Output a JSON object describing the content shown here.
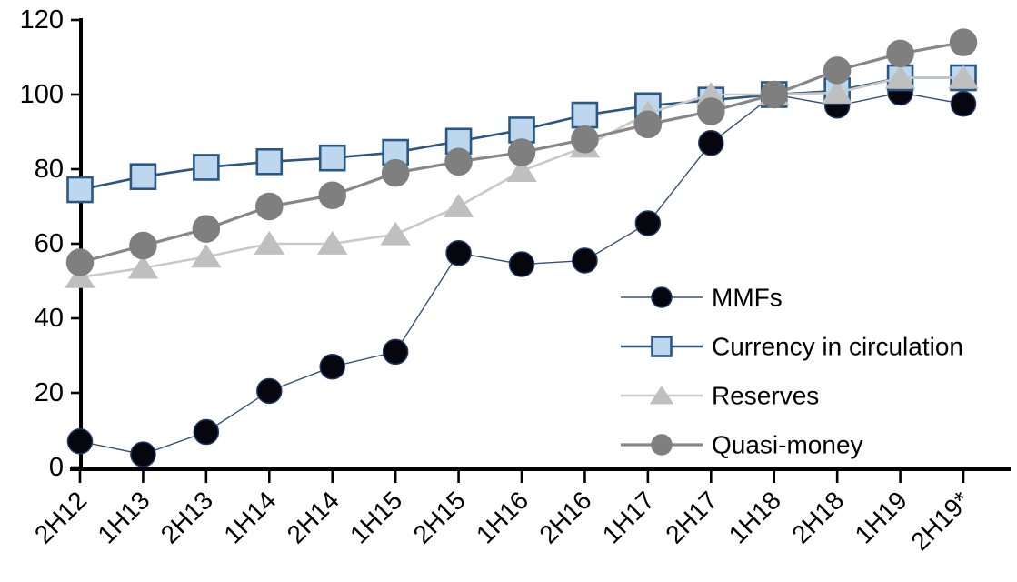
{
  "chart_data": {
    "type": "line",
    "title": "",
    "xlabel": "",
    "ylabel": "",
    "background": "#ffffff",
    "axis_color": "#000000",
    "grid": false,
    "legend_position": "inside-right",
    "ylim": [
      0,
      120
    ],
    "yticks": [
      0,
      20,
      40,
      60,
      80,
      100,
      120
    ],
    "categories": [
      "2H12",
      "1H13",
      "2H13",
      "1H14",
      "2H14",
      "1H15",
      "2H15",
      "1H16",
      "2H16",
      "1H17",
      "2H17",
      "1H18",
      "2H18",
      "1H19",
      "2H19*"
    ],
    "series": [
      {
        "name": "MMFs",
        "marker": "circle",
        "marker_fill": "#06060f",
        "marker_stroke": "#1f3864",
        "line_color": "#35507e",
        "line_width": 1.4,
        "marker_size": 13.5,
        "values": [
          7,
          3.5,
          9.5,
          20.5,
          27,
          31,
          57.5,
          54.5,
          55.5,
          65.5,
          87,
          100,
          97,
          100.5,
          97.5
        ]
      },
      {
        "name": "Currency in circulation",
        "marker": "square",
        "marker_fill": "#bdd7ee",
        "marker_stroke": "#2a5783",
        "line_color": "#2a5783",
        "line_width": 2.6,
        "marker_size": 13.5,
        "values": [
          74.5,
          78,
          80.5,
          82,
          83,
          84.5,
          87.5,
          90.5,
          94.5,
          97,
          98.5,
          100,
          101,
          104.5,
          104.5
        ]
      },
      {
        "name": "Reserves",
        "marker": "triangle",
        "marker_fill": "#bfbfbf",
        "marker_stroke": "#bfbfbf",
        "line_color": "#c9c9c9",
        "line_width": 2.6,
        "marker_size": 14,
        "values": [
          51,
          53.5,
          56.5,
          60,
          60,
          62.5,
          70,
          79.5,
          86,
          95,
          100,
          100,
          100.5,
          104.5,
          104.5
        ]
      },
      {
        "name": "Quasi-money",
        "marker": "circle",
        "marker_fill": "#7f7f7f",
        "marker_stroke": "#7f7f7f",
        "line_color": "#878787",
        "line_width": 3.2,
        "marker_size": 14.5,
        "values": [
          55,
          59.5,
          64,
          70,
          73,
          79,
          82,
          84.5,
          88,
          92,
          95.5,
          100,
          106.5,
          111,
          114
        ]
      }
    ]
  }
}
